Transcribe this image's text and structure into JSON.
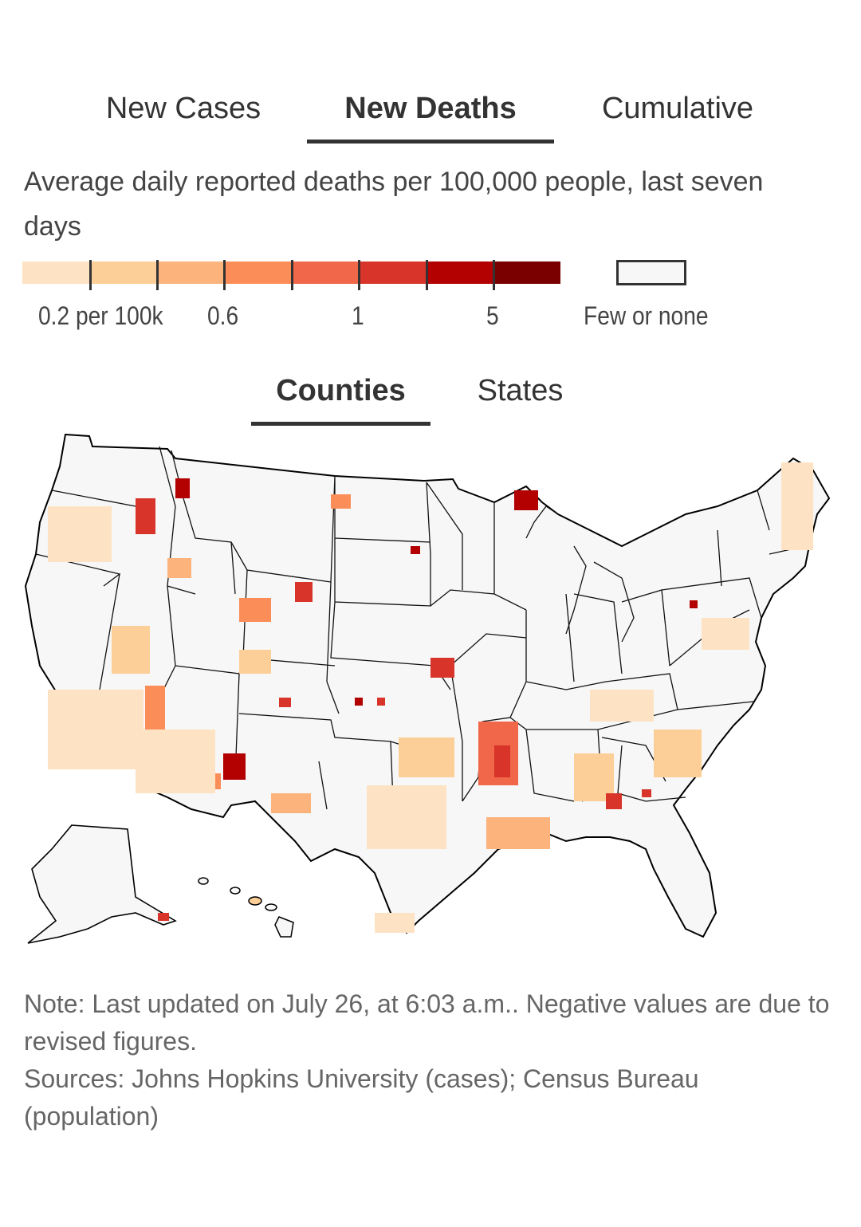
{
  "tabs": [
    {
      "label": "New Cases",
      "active": false
    },
    {
      "label": "New Deaths",
      "active": true
    },
    {
      "label": "Cumulative",
      "active": false
    }
  ],
  "subtitle": "Average daily reported deaths per 100,000 people, last seven days",
  "legend": {
    "colors": [
      "#fde3c4",
      "#fdcf98",
      "#fcb37c",
      "#fb8e58",
      "#f0674a",
      "#d8342a",
      "#b30000",
      "#7a0000"
    ],
    "labels": [
      "0.2 per 100k",
      "0.6",
      "1",
      "5"
    ],
    "none_label": "Few or none",
    "none_color": "#f7f7f7"
  },
  "geo_tabs": [
    {
      "label": "Counties",
      "active": true
    },
    {
      "label": "States",
      "active": false
    }
  ],
  "map": {
    "region": "United States",
    "few_or_none_color": "#f7f7f7",
    "outline_color": "#000000"
  },
  "note": {
    "line1": "Note: Last updated on July 26, at 6:03 a.m.. Negative values are due to revised figures.",
    "line2": "Sources: Johns Hopkins University (cases); Census Bureau (population)"
  }
}
